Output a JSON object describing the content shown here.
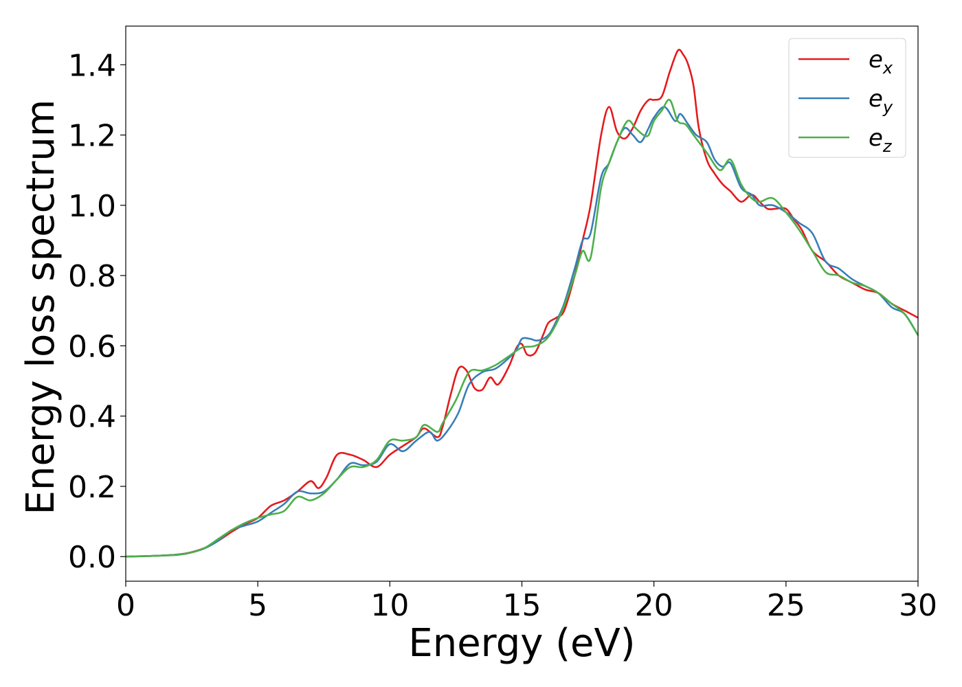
{
  "chart_data": {
    "type": "line",
    "xlabel": "Energy (eV)",
    "ylabel": "Energy loss spectrum",
    "xlim": [
      0,
      30
    ],
    "ylim": [
      -0.07,
      1.51
    ],
    "xticks": [
      0,
      5,
      10,
      15,
      20,
      25,
      30
    ],
    "yticks": [
      0.0,
      0.2,
      0.4,
      0.6,
      0.8,
      1.0,
      1.2,
      1.4
    ],
    "xtick_labels": [
      "0",
      "5",
      "10",
      "15",
      "20",
      "25",
      "30"
    ],
    "ytick_labels": [
      "0.0",
      "0.2",
      "0.4",
      "0.6",
      "0.8",
      "1.0",
      "1.2",
      "1.4"
    ],
    "grid": false,
    "legend_position": "top-right",
    "series": [
      {
        "name": "e",
        "sub": "x",
        "color": "#e41a1c",
        "x": [
          0,
          1,
          2,
          2.5,
          3,
          3.5,
          4,
          4.5,
          5,
          5.5,
          6,
          6.5,
          7,
          7.3,
          7.6,
          8,
          8.5,
          9,
          9.5,
          10,
          10.5,
          11,
          11.3,
          11.8,
          12,
          12.3,
          12.6,
          12.9,
          13.2,
          13.5,
          13.8,
          14.1,
          14.5,
          14.8,
          15,
          15.2,
          15.5,
          15.8,
          16,
          16.3,
          16.6,
          17,
          17.3,
          17.6,
          18,
          18.3,
          18.6,
          18.9,
          19.2,
          19.5,
          19.8,
          20,
          20.3,
          20.6,
          20.9,
          21.1,
          21.3,
          21.5,
          21.7,
          22,
          22.3,
          22.6,
          22.9,
          23.3,
          23.7,
          24,
          24.3,
          24.6,
          25,
          25.3,
          25.6,
          26,
          26.5,
          27,
          27.5,
          28,
          28.5,
          29,
          29.5,
          30
        ],
        "y": [
          0,
          0.002,
          0.006,
          0.013,
          0.025,
          0.045,
          0.07,
          0.092,
          0.11,
          0.145,
          0.16,
          0.185,
          0.215,
          0.195,
          0.225,
          0.29,
          0.29,
          0.275,
          0.255,
          0.29,
          0.315,
          0.34,
          0.365,
          0.34,
          0.37,
          0.46,
          0.535,
          0.53,
          0.48,
          0.475,
          0.51,
          0.49,
          0.54,
          0.595,
          0.605,
          0.575,
          0.58,
          0.63,
          0.665,
          0.68,
          0.7,
          0.8,
          0.9,
          1.0,
          1.2,
          1.28,
          1.21,
          1.19,
          1.22,
          1.27,
          1.3,
          1.3,
          1.31,
          1.38,
          1.44,
          1.43,
          1.4,
          1.34,
          1.22,
          1.13,
          1.09,
          1.06,
          1.04,
          1.01,
          1.03,
          1.01,
          0.99,
          0.99,
          0.99,
          0.96,
          0.93,
          0.87,
          0.84,
          0.8,
          0.78,
          0.76,
          0.75,
          0.72,
          0.7,
          0.68
        ]
      },
      {
        "name": "e",
        "sub": "y",
        "color": "#377eb8",
        "x": [
          0,
          1,
          2,
          2.5,
          3,
          3.5,
          4,
          4.5,
          5,
          5.5,
          6,
          6.5,
          7,
          7.5,
          8,
          8.5,
          9,
          9.5,
          10,
          10.5,
          11,
          11.5,
          11.8,
          12.2,
          12.6,
          13,
          13.5,
          14,
          14.5,
          14.8,
          15,
          15.3,
          15.6,
          16,
          16.3,
          16.6,
          17,
          17.3,
          17.6,
          18,
          18.3,
          18.6,
          18.9,
          19.2,
          19.5,
          19.8,
          20,
          20.4,
          20.8,
          21,
          21.3,
          21.6,
          22,
          22.3,
          22.6,
          22.9,
          23.3,
          23.7,
          24,
          24.5,
          25,
          25.5,
          26,
          26.5,
          27,
          27.5,
          28,
          28.5,
          29,
          29.5,
          30
        ],
        "y": [
          0,
          0.002,
          0.006,
          0.012,
          0.024,
          0.045,
          0.075,
          0.088,
          0.1,
          0.125,
          0.15,
          0.185,
          0.18,
          0.185,
          0.22,
          0.265,
          0.26,
          0.27,
          0.32,
          0.3,
          0.33,
          0.355,
          0.33,
          0.36,
          0.41,
          0.49,
          0.525,
          0.535,
          0.565,
          0.59,
          0.62,
          0.62,
          0.615,
          0.63,
          0.67,
          0.72,
          0.82,
          0.9,
          0.92,
          1.08,
          1.12,
          1.18,
          1.22,
          1.2,
          1.18,
          1.22,
          1.25,
          1.28,
          1.24,
          1.26,
          1.23,
          1.2,
          1.18,
          1.13,
          1.11,
          1.12,
          1.05,
          1.03,
          1.0,
          1.0,
          0.98,
          0.95,
          0.92,
          0.84,
          0.82,
          0.79,
          0.77,
          0.75,
          0.71,
          0.69,
          0.63
        ]
      },
      {
        "name": "e",
        "sub": "z",
        "color": "#4daf4a",
        "x": [
          0,
          1,
          2,
          2.5,
          3,
          3.5,
          4,
          4.5,
          5,
          5.5,
          6,
          6.5,
          7,
          7.5,
          8,
          8.5,
          9,
          9.5,
          10,
          10.5,
          11,
          11.3,
          11.8,
          12,
          12.5,
          13,
          13.5,
          14,
          14.5,
          15,
          15.5,
          16,
          16.5,
          17,
          17.3,
          17.6,
          18,
          18.3,
          18.6,
          19,
          19.3,
          19.6,
          19.8,
          20,
          20.3,
          20.6,
          20.9,
          21.2,
          21.5,
          22,
          22.5,
          22.9,
          23.3,
          23.7,
          24,
          24.5,
          25,
          25.5,
          26,
          26.5,
          27,
          27.5,
          28,
          28.5,
          29,
          29.5,
          30
        ],
        "y": [
          0,
          0.002,
          0.005,
          0.012,
          0.025,
          0.05,
          0.075,
          0.095,
          0.11,
          0.12,
          0.13,
          0.17,
          0.16,
          0.18,
          0.22,
          0.255,
          0.255,
          0.275,
          0.33,
          0.33,
          0.34,
          0.375,
          0.355,
          0.38,
          0.445,
          0.525,
          0.53,
          0.545,
          0.57,
          0.595,
          0.6,
          0.625,
          0.695,
          0.8,
          0.87,
          0.85,
          1.05,
          1.12,
          1.18,
          1.24,
          1.22,
          1.2,
          1.2,
          1.24,
          1.27,
          1.3,
          1.24,
          1.23,
          1.2,
          1.15,
          1.1,
          1.13,
          1.06,
          1.02,
          1.01,
          1.02,
          0.98,
          0.93,
          0.87,
          0.81,
          0.8,
          0.78,
          0.77,
          0.75,
          0.72,
          0.69,
          0.63
        ]
      }
    ]
  }
}
